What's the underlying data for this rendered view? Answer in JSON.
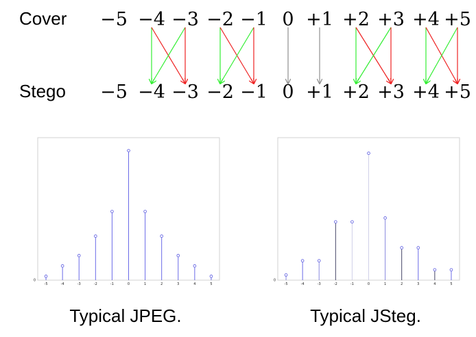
{
  "mapping": {
    "cover_label": "Cover",
    "stego_label": "Stego",
    "cover_values": [
      "−5",
      "−4",
      "−3",
      "−2",
      "−1",
      "0",
      "+1",
      "+2",
      "+3",
      "+4",
      "+5"
    ],
    "stego_values": [
      "−5",
      "−4",
      "−3",
      "−2",
      "−1",
      "0",
      "+1",
      "+2",
      "+3",
      "+4",
      "+5"
    ],
    "arrow_colors": {
      "to_even": "#33ee33",
      "to_odd": "#ee2222",
      "unchanged": "#909090"
    },
    "arrows": [
      {
        "from": 1,
        "to": 1,
        "kind": "to_even"
      },
      {
        "from": 1,
        "to": 2,
        "kind": "to_odd"
      },
      {
        "from": 2,
        "to": 1,
        "kind": "to_even"
      },
      {
        "from": 2,
        "to": 2,
        "kind": "to_odd"
      },
      {
        "from": 3,
        "to": 3,
        "kind": "to_even"
      },
      {
        "from": 3,
        "to": 4,
        "kind": "to_odd"
      },
      {
        "from": 4,
        "to": 3,
        "kind": "to_even"
      },
      {
        "from": 4,
        "to": 4,
        "kind": "to_odd"
      },
      {
        "from": 5,
        "to": 5,
        "kind": "unchanged"
      },
      {
        "from": 6,
        "to": 6,
        "kind": "unchanged"
      },
      {
        "from": 7,
        "to": 7,
        "kind": "to_even"
      },
      {
        "from": 7,
        "to": 8,
        "kind": "to_odd"
      },
      {
        "from": 8,
        "to": 7,
        "kind": "to_even"
      },
      {
        "from": 8,
        "to": 8,
        "kind": "to_odd"
      },
      {
        "from": 9,
        "to": 9,
        "kind": "to_even"
      },
      {
        "from": 9,
        "to": 10,
        "kind": "to_odd"
      },
      {
        "from": 10,
        "to": 9,
        "kind": "to_even"
      },
      {
        "from": 10,
        "to": 10,
        "kind": "to_odd"
      }
    ]
  },
  "chart_data": [
    {
      "type": "stem",
      "caption": "Typical JPEG.",
      "x": [
        -5,
        -4,
        -3,
        -2,
        -1,
        0,
        1,
        2,
        3,
        4,
        5
      ],
      "values": [
        3,
        11,
        19,
        34,
        53,
        100,
        53,
        34,
        19,
        11,
        3
      ],
      "xtick_labels": [
        "-5",
        "-4",
        "-3",
        "-2",
        "-1",
        "0",
        "1",
        "2",
        "3",
        "4",
        "5"
      ],
      "ytick_labels": [
        "0"
      ],
      "stem_colors": [
        "#6a6ae8",
        "#6a6ae8",
        "#6a6ae8",
        "#6a6ae8",
        "#6a6ae8",
        "#6a6ae8",
        "#6a6ae8",
        "#6a6ae8",
        "#6a6ae8",
        "#6a6ae8",
        "#6a6ae8"
      ],
      "marker_color": "#5a5ae0",
      "xlim": [
        -5.5,
        5.5
      ],
      "ylim": [
        0,
        110
      ]
    },
    {
      "type": "stem",
      "caption": "Typical JSteg.",
      "x": [
        -5,
        -4,
        -3,
        -2,
        -1,
        0,
        1,
        2,
        3,
        4,
        5
      ],
      "values": [
        4,
        15,
        15,
        45,
        45,
        98,
        48,
        25,
        25,
        8,
        8
      ],
      "xtick_labels": [
        "-5",
        "-4",
        "-3",
        "-2",
        "-1",
        "0",
        "1",
        "2",
        "3",
        "4",
        "5"
      ],
      "ytick_labels": [
        "0"
      ],
      "stem_colors": [
        "#8a8ae0",
        "#6a6ae8",
        "#8a8ae0",
        "#444466",
        "#d0d0e8",
        "#d0d0e8",
        "#8a8ae0",
        "#444466",
        "#6a6ae8",
        "#444466",
        "#6a6ae8"
      ],
      "marker_color": "#5a5ae0",
      "xlim": [
        -5.5,
        5.5
      ],
      "ylim": [
        0,
        110
      ]
    }
  ]
}
